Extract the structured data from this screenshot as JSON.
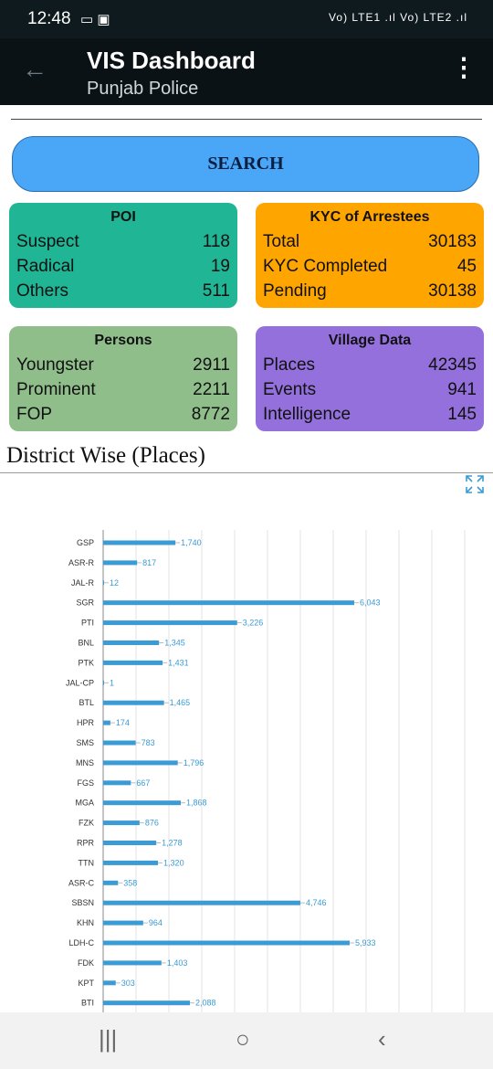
{
  "status": {
    "time": "12:48",
    "network": "Vo) LTE1 .ıl Vo) LTE2 .ıl"
  },
  "appbar": {
    "title": "VIS Dashboard",
    "subtitle": "Punjab Police"
  },
  "search": {
    "label": "SEARCH"
  },
  "cards": {
    "poi": {
      "title": "POI",
      "rows": [
        {
          "label": "Suspect",
          "value": "118"
        },
        {
          "label": "Radical",
          "value": "19"
        },
        {
          "label": "Others",
          "value": "511"
        }
      ]
    },
    "kyc": {
      "title": "KYC of Arrestees",
      "rows": [
        {
          "label": "Total",
          "value": "30183"
        },
        {
          "label": "KYC Completed",
          "value": "45"
        },
        {
          "label": "Pending",
          "value": "30138"
        }
      ]
    },
    "persons": {
      "title": "Persons",
      "rows": [
        {
          "label": "Youngster",
          "value": "2911"
        },
        {
          "label": "Prominent",
          "value": "2211"
        },
        {
          "label": "FOP",
          "value": "8772"
        }
      ]
    },
    "village": {
      "title": "Village Data",
      "rows": [
        {
          "label": "Places",
          "value": "42345"
        },
        {
          "label": "Events",
          "value": "941"
        },
        {
          "label": "Intelligence",
          "value": "145"
        }
      ]
    }
  },
  "section": {
    "title": "District Wise (Places)"
  },
  "chart_data": {
    "type": "bar",
    "orientation": "horizontal",
    "title": "District Wise (Places)",
    "bar_color": "#3a9bd5",
    "grid": true,
    "categories": [
      "GSP",
      "ASR-R",
      "JAL-R",
      "SGR",
      "PTI",
      "BNL",
      "PTK",
      "JAL-CP",
      "BTL",
      "HPR",
      "SMS",
      "MNS",
      "FGS",
      "MGA",
      "FZK",
      "RPR",
      "TTN",
      "ASR-C",
      "SBSN",
      "KHN",
      "LDH-C",
      "FDK",
      "KPT",
      "BTI"
    ],
    "values": [
      1740,
      817,
      12,
      6043,
      3226,
      1345,
      1431,
      1,
      1465,
      174,
      783,
      1796,
      667,
      1868,
      876,
      1278,
      1320,
      358,
      4746,
      964,
      5933,
      1403,
      303,
      2088
    ],
    "labels": [
      "1,740",
      "817",
      "12",
      "6,043",
      "3,226",
      "1,345",
      "1,431",
      "1",
      "1,465",
      "174",
      "783",
      "1,796",
      "667",
      "1,868",
      "876",
      "1,278",
      "1,320",
      "358",
      "4,746",
      "964",
      "5,933",
      "1,403",
      "303",
      "2,088"
    ]
  }
}
